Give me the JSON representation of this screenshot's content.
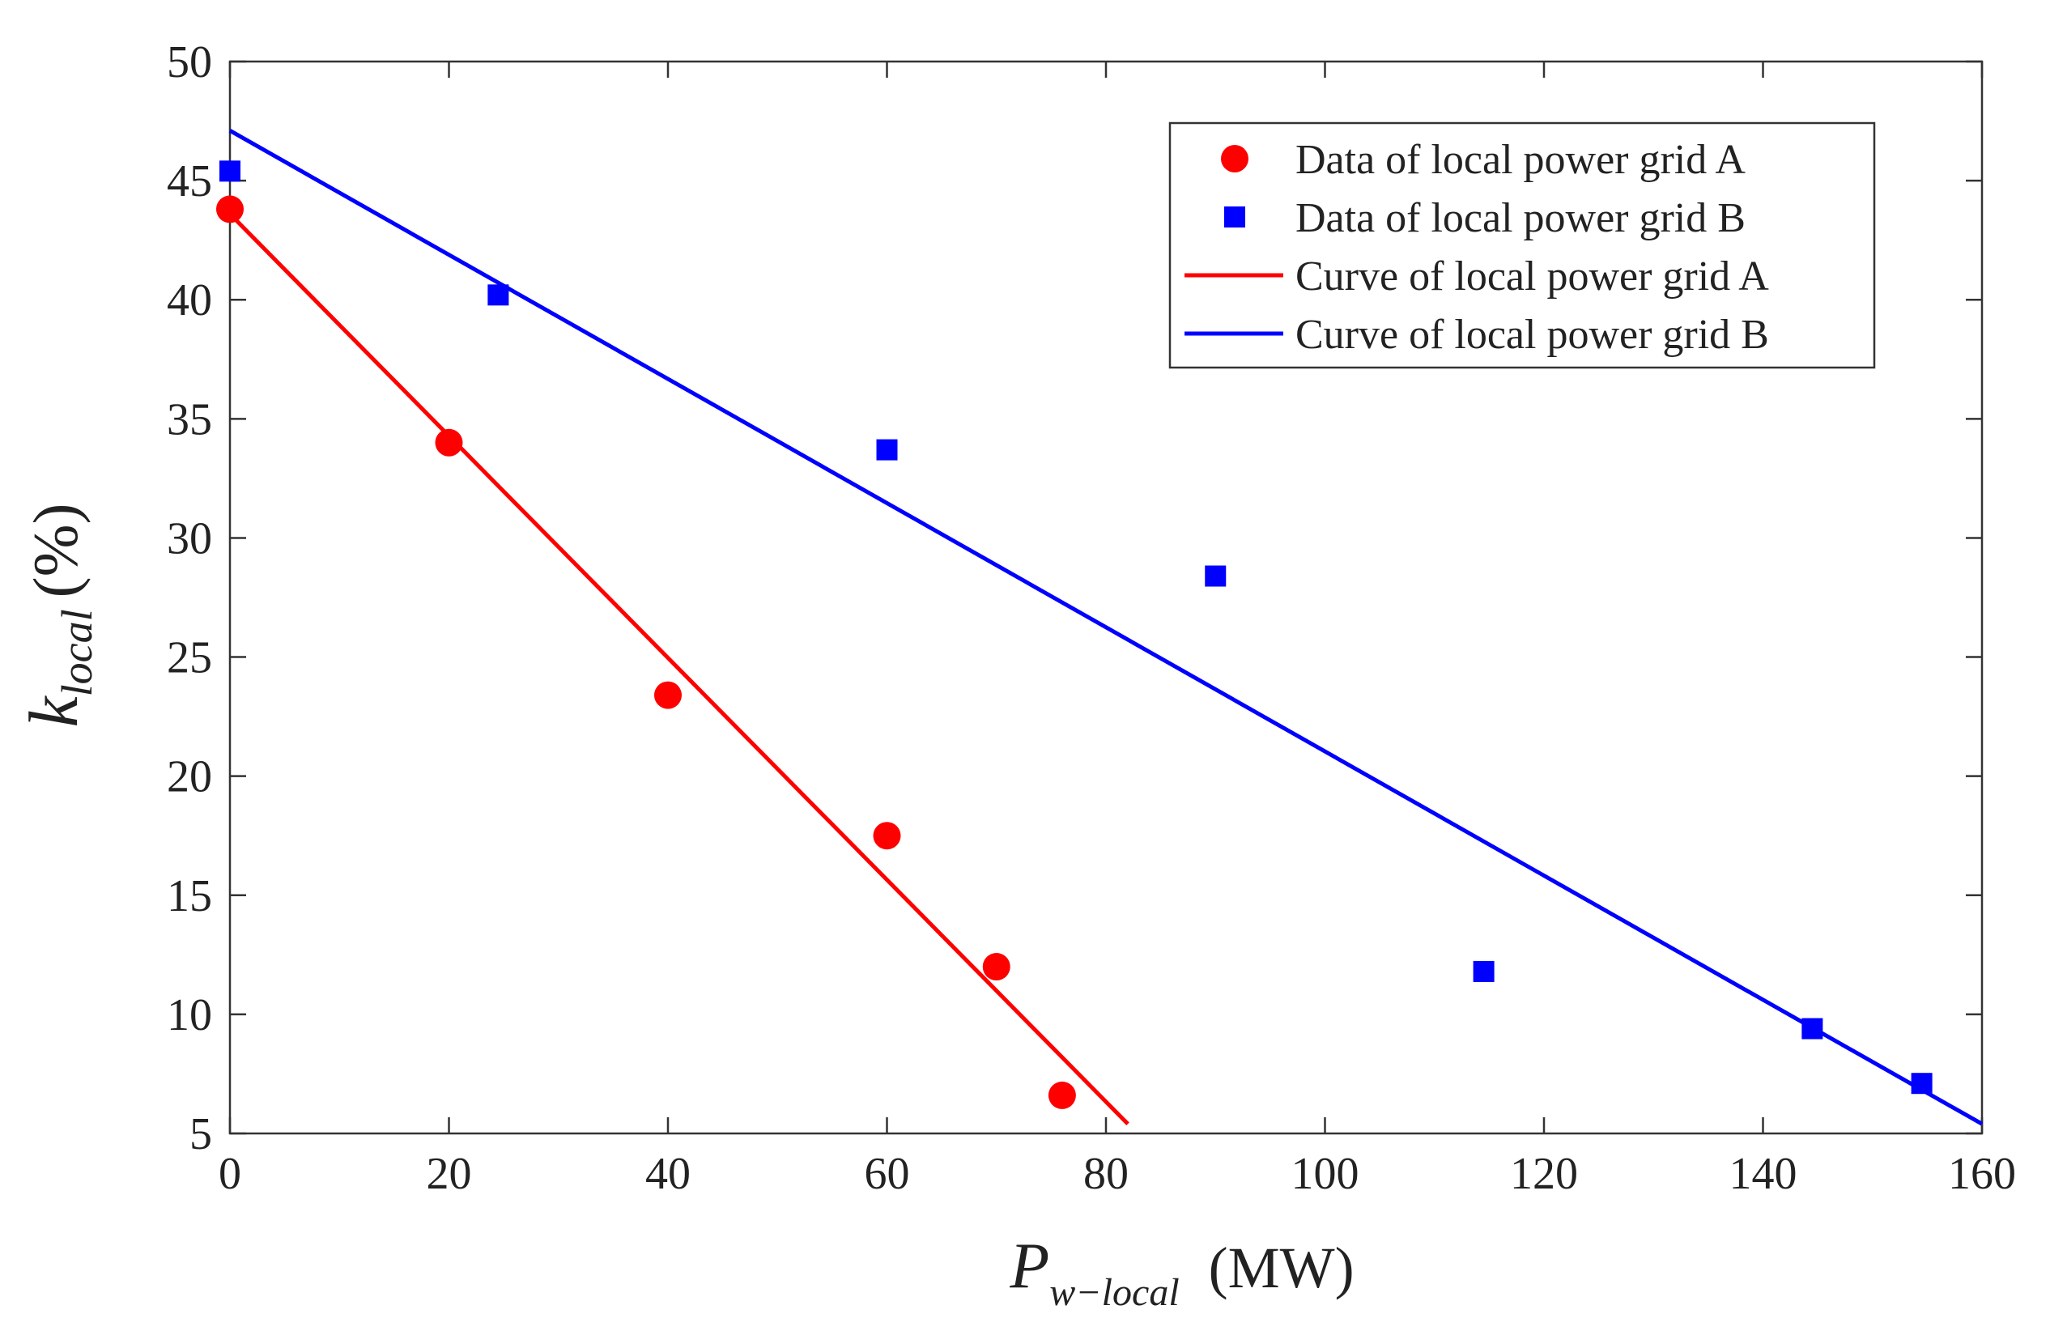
{
  "chart_data": {
    "type": "scatter",
    "title": "",
    "xlabel": {
      "main": "P",
      "sub": "w−local",
      "unit": "(MW)"
    },
    "ylabel": {
      "main": "k",
      "sub": "local",
      "unit": "(%)"
    },
    "xlim": [
      0,
      160
    ],
    "ylim": [
      5,
      50
    ],
    "xticks": [
      0,
      20,
      40,
      60,
      80,
      100,
      120,
      140,
      160
    ],
    "yticks": [
      5,
      10,
      15,
      20,
      25,
      30,
      35,
      40,
      45,
      50
    ],
    "grid": false,
    "legend_position": "top-right",
    "series": [
      {
        "name": "Data of local power grid A",
        "kind": "scatter",
        "marker": "circle",
        "color": "#ff0000",
        "x": [
          0,
          20,
          40,
          60,
          70,
          76
        ],
        "y": [
          43.8,
          34.0,
          23.4,
          17.5,
          12.0,
          6.6
        ]
      },
      {
        "name": "Data of local power grid B",
        "kind": "scatter",
        "marker": "square",
        "color": "#0000ff",
        "x": [
          0,
          24.5,
          60,
          90,
          114.5,
          144.5,
          154.5
        ],
        "y": [
          45.4,
          40.2,
          33.7,
          28.4,
          11.8,
          9.4,
          7.1
        ]
      },
      {
        "name": "Curve of local power grid A",
        "kind": "line",
        "color": "#ff0000",
        "x": [
          0,
          82
        ],
        "y": [
          43.6,
          5.4
        ]
      },
      {
        "name": "Curve of local power grid B",
        "kind": "line",
        "color": "#0000ff",
        "x": [
          0,
          160
        ],
        "y": [
          47.1,
          5.4
        ]
      }
    ]
  }
}
